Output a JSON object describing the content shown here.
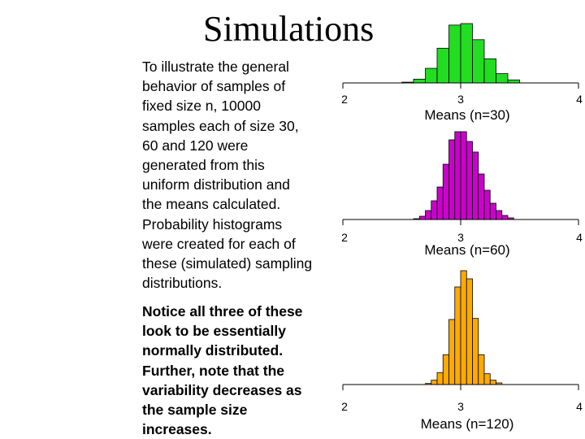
{
  "slide": {
    "title": "Simulations",
    "intro_text": "To illustrate the general\nbehavior of samples of\nfixed size n, 10000\nsamples each of size 30,\n60 and 120 were\ngenerated from this\nuniform distribution and\nthe means calculated.\nProbability histograms\nwere created for each of\nthese (simulated) sampling\ndistributions.",
    "note_text": "Notice all three of these\nlook to be essentially\nnormally distributed.\nFurther, note that the\nvariability decreases as\nthe sample size\nincreases."
  },
  "chart_data": [
    {
      "type": "bar",
      "title": "",
      "xlabel": "Means (n=30)",
      "ylabel": "",
      "xlim": [
        2,
        4
      ],
      "xticks": [
        "2",
        "3",
        "4"
      ],
      "bin_width": 0.1,
      "bin_starts": [
        2.5,
        2.6,
        2.7,
        2.8,
        2.9,
        3.0,
        3.1,
        3.2,
        3.3,
        3.4
      ],
      "values": [
        0.003,
        0.015,
        0.058,
        0.138,
        0.23,
        0.236,
        0.172,
        0.096,
        0.037,
        0.012
      ],
      "color": "#22dd22",
      "grid": false
    },
    {
      "type": "bar",
      "title": "",
      "xlabel": "Means (n=60)",
      "ylabel": "",
      "xlim": [
        2,
        4
      ],
      "xticks": [
        "2",
        "3",
        "4"
      ],
      "bin_width": 0.05,
      "bin_starts": [
        2.6,
        2.65,
        2.7,
        2.75,
        2.8,
        2.85,
        2.9,
        2.95,
        3.0,
        3.05,
        3.1,
        3.15,
        3.2,
        3.25,
        3.3,
        3.35,
        3.4
      ],
      "values": [
        0.001,
        0.004,
        0.011,
        0.023,
        0.04,
        0.068,
        0.098,
        0.108,
        0.108,
        0.096,
        0.083,
        0.056,
        0.036,
        0.02,
        0.011,
        0.005,
        0.002
      ],
      "color": "#cc00cc",
      "grid": false
    },
    {
      "type": "bar",
      "title": "",
      "xlabel": "Means (n=120)",
      "ylabel": "",
      "xlim": [
        2,
        4
      ],
      "xticks": [
        "2",
        "3",
        "4"
      ],
      "bin_width": 0.05,
      "bin_starts": [
        2.7,
        2.75,
        2.8,
        2.85,
        2.9,
        2.95,
        3.0,
        3.05,
        3.1,
        3.15,
        3.2,
        3.25,
        3.3
      ],
      "values": [
        0.002,
        0.008,
        0.022,
        0.055,
        0.12,
        0.18,
        0.21,
        0.195,
        0.122,
        0.055,
        0.02,
        0.008,
        0.003
      ],
      "color": "#ffaa00",
      "grid": false
    }
  ]
}
